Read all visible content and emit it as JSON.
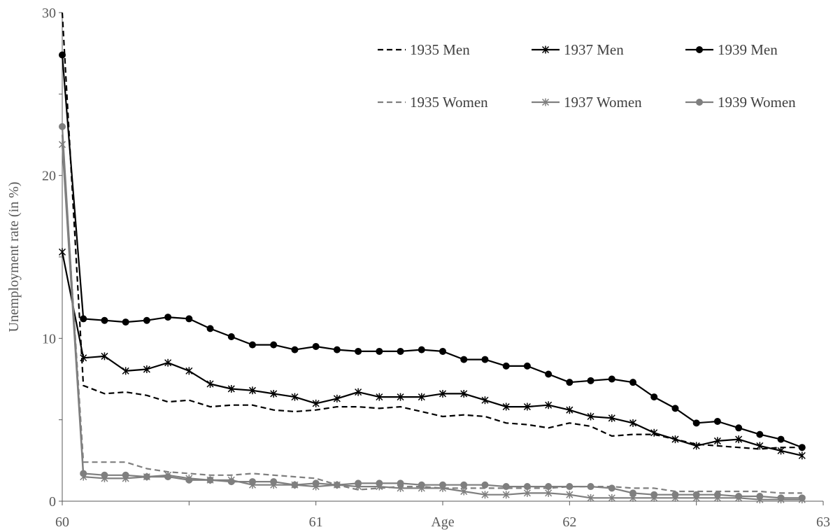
{
  "chart_data": {
    "type": "line",
    "title": "",
    "xlabel": "Age",
    "ylabel": "Unemployment rate (in %)",
    "xlim": [
      60,
      63
    ],
    "ylim": [
      0,
      30
    ],
    "x_ticks": [
      "60",
      "61",
      "62",
      "63"
    ],
    "y_ticks": [
      "0",
      "10",
      "20",
      "30"
    ],
    "legend_position": "top-right",
    "x": [
      60.0,
      60.0833,
      60.1667,
      60.25,
      60.3333,
      60.4167,
      60.5,
      60.5833,
      60.6667,
      60.75,
      60.8333,
      60.9167,
      61.0,
      61.0833,
      61.1667,
      61.25,
      61.3333,
      61.4167,
      61.5,
      61.5833,
      61.6667,
      61.75,
      61.8333,
      61.9167,
      62.0,
      62.0833,
      62.1667,
      62.25,
      62.3333,
      62.4167,
      62.5,
      62.5833,
      62.6667,
      62.75,
      62.8333,
      62.9167
    ],
    "series": [
      {
        "name": "1935 Men",
        "color": "#000000",
        "dash": "dashed",
        "marker": "none",
        "values": [
          30.0,
          7.1,
          6.6,
          6.7,
          6.5,
          6.1,
          6.2,
          5.8,
          5.9,
          5.9,
          5.6,
          5.5,
          5.6,
          5.8,
          5.8,
          5.7,
          5.8,
          5.5,
          5.2,
          5.3,
          5.2,
          4.8,
          4.7,
          4.5,
          4.8,
          4.6,
          4.0,
          4.1,
          4.1,
          3.8,
          3.5,
          3.4,
          3.3,
          3.2,
          3.3,
          3.3
        ]
      },
      {
        "name": "1937 Men",
        "color": "#000000",
        "dash": "solid",
        "marker": "star",
        "values": [
          15.3,
          8.8,
          8.9,
          8.0,
          8.1,
          8.5,
          8.0,
          7.2,
          6.9,
          6.8,
          6.6,
          6.4,
          6.0,
          6.3,
          6.7,
          6.4,
          6.4,
          6.4,
          6.6,
          6.6,
          6.2,
          5.8,
          5.8,
          5.9,
          5.6,
          5.2,
          5.1,
          4.8,
          4.2,
          3.8,
          3.4,
          3.7,
          3.8,
          3.4,
          3.1,
          2.8
        ]
      },
      {
        "name": "1939 Men",
        "color": "#000000",
        "dash": "solid",
        "marker": "circle",
        "values": [
          27.4,
          11.2,
          11.1,
          11.0,
          11.1,
          11.3,
          11.2,
          10.6,
          10.1,
          9.6,
          9.6,
          9.3,
          9.5,
          9.3,
          9.2,
          9.2,
          9.2,
          9.3,
          9.2,
          8.7,
          8.7,
          8.3,
          8.3,
          7.8,
          7.3,
          7.4,
          7.5,
          7.3,
          6.4,
          5.7,
          4.8,
          4.9,
          4.5,
          4.1,
          3.8,
          3.3
        ]
      },
      {
        "name": "1935 Women",
        "color": "#7f7f7f",
        "dash": "dashed",
        "marker": "none",
        "values": [
          22.5,
          2.4,
          2.4,
          2.4,
          2.0,
          1.8,
          1.7,
          1.6,
          1.6,
          1.7,
          1.6,
          1.5,
          1.4,
          1.0,
          0.7,
          0.8,
          0.9,
          0.9,
          0.8,
          0.8,
          0.8,
          0.8,
          0.8,
          0.8,
          0.9,
          0.9,
          0.9,
          0.8,
          0.8,
          0.6,
          0.6,
          0.6,
          0.6,
          0.6,
          0.5,
          0.5
        ]
      },
      {
        "name": "1937 Women",
        "color": "#7f7f7f",
        "dash": "solid",
        "marker": "star",
        "values": [
          21.9,
          1.5,
          1.4,
          1.4,
          1.5,
          1.6,
          1.4,
          1.3,
          1.3,
          1.0,
          1.0,
          1.0,
          0.9,
          1.0,
          0.9,
          0.9,
          0.8,
          0.8,
          0.8,
          0.6,
          0.4,
          0.4,
          0.5,
          0.5,
          0.4,
          0.2,
          0.2,
          0.2,
          0.2,
          0.2,
          0.2,
          0.2,
          0.2,
          0.1,
          0.1,
          0.1
        ]
      },
      {
        "name": "1939 Women",
        "color": "#7f7f7f",
        "dash": "solid",
        "marker": "circle",
        "values": [
          23.0,
          1.7,
          1.6,
          1.6,
          1.5,
          1.5,
          1.3,
          1.3,
          1.2,
          1.2,
          1.2,
          1.0,
          1.1,
          1.0,
          1.1,
          1.1,
          1.1,
          1.0,
          1.0,
          1.0,
          1.0,
          0.9,
          0.9,
          0.9,
          0.9,
          0.9,
          0.8,
          0.5,
          0.4,
          0.4,
          0.4,
          0.4,
          0.3,
          0.3,
          0.2,
          0.2
        ]
      }
    ]
  }
}
